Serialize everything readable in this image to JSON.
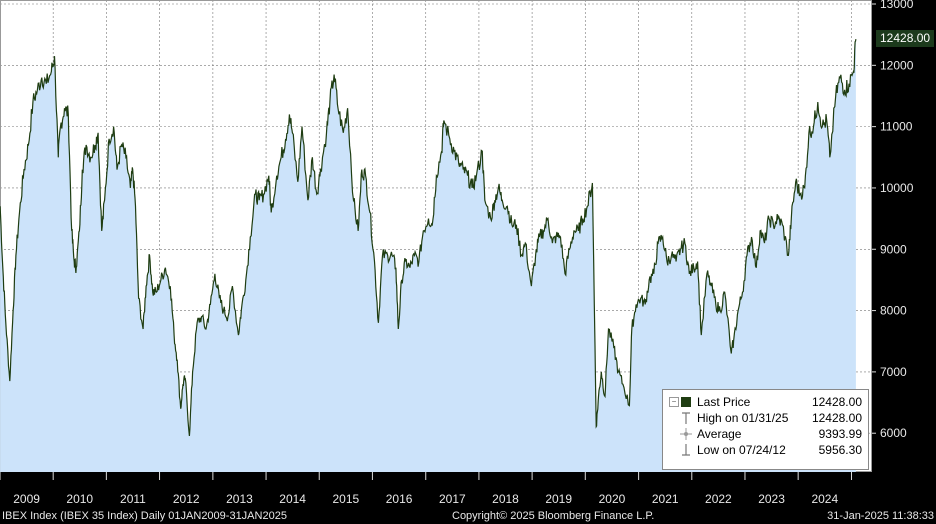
{
  "chart_data": {
    "type": "area",
    "title": "",
    "xlabel": "",
    "ylabel": "",
    "ylim": [
      5400,
      13000
    ],
    "y_ticks": [
      6000,
      7000,
      8000,
      9000,
      10000,
      11000,
      12000,
      13000
    ],
    "x_ticks": [
      "2009",
      "2010",
      "2011",
      "2012",
      "2013",
      "2014",
      "2015",
      "2016",
      "2017",
      "2018",
      "2019",
      "2020",
      "2021",
      "2022",
      "2023",
      "2024"
    ],
    "grid": true,
    "legend_position": "bottom-right",
    "series": [
      {
        "name": "Last Price",
        "color": "#1f3d12",
        "fill": "#cce3fa",
        "points": [
          [
            "2009-01-02",
            9700
          ],
          [
            "2009-01-20",
            8700
          ],
          [
            "2009-02-10",
            7800
          ],
          [
            "2009-03-09",
            6850
          ],
          [
            "2009-04-01",
            8000
          ],
          [
            "2009-04-20",
            8900
          ],
          [
            "2009-05-15",
            9600
          ],
          [
            "2009-06-15",
            10300
          ],
          [
            "2009-07-15",
            10700
          ],
          [
            "2009-08-15",
            11400
          ],
          [
            "2009-09-15",
            11600
          ],
          [
            "2009-10-15",
            11800
          ],
          [
            "2009-11-15",
            11700
          ],
          [
            "2009-12-20",
            11900
          ],
          [
            "2010-01-10",
            12150
          ],
          [
            "2010-02-05",
            10500
          ],
          [
            "2010-02-20",
            11000
          ],
          [
            "2010-03-20",
            11300
          ],
          [
            "2010-04-15",
            11200
          ],
          [
            "2010-05-08",
            9300
          ],
          [
            "2010-05-25",
            8800
          ],
          [
            "2010-06-08",
            8700
          ],
          [
            "2010-06-30",
            9300
          ],
          [
            "2010-07-20",
            10300
          ],
          [
            "2010-08-15",
            10700
          ],
          [
            "2010-09-15",
            10500
          ],
          [
            "2010-10-15",
            10700
          ],
          [
            "2010-11-05",
            10900
          ],
          [
            "2010-11-30",
            9300
          ],
          [
            "2010-12-20",
            9800
          ],
          [
            "2011-01-20",
            10800
          ],
          [
            "2011-02-20",
            11000
          ],
          [
            "2011-03-15",
            10300
          ],
          [
            "2011-04-15",
            10700
          ],
          [
            "2011-05-15",
            10500
          ],
          [
            "2011-06-15",
            10000
          ],
          [
            "2011-07-01",
            10300
          ],
          [
            "2011-07-20",
            9700
          ],
          [
            "2011-08-10",
            8200
          ],
          [
            "2011-09-10",
            7700
          ],
          [
            "2011-10-01",
            8400
          ],
          [
            "2011-10-25",
            8900
          ],
          [
            "2011-11-15",
            8300
          ],
          [
            "2011-12-10",
            8300
          ],
          [
            "2012-01-10",
            8500
          ],
          [
            "2012-02-10",
            8700
          ],
          [
            "2012-03-15",
            8400
          ],
          [
            "2012-04-10",
            7600
          ],
          [
            "2012-05-01",
            7200
          ],
          [
            "2012-05-25",
            6400
          ],
          [
            "2012-06-10",
            6800
          ],
          [
            "2012-06-25",
            6900
          ],
          [
            "2012-07-24",
            5956
          ],
          [
            "2012-08-15",
            7000
          ],
          [
            "2012-09-15",
            7800
          ],
          [
            "2012-10-15",
            7900
          ],
          [
            "2012-11-15",
            7700
          ],
          [
            "2012-12-15",
            8100
          ],
          [
            "2013-01-15",
            8600
          ],
          [
            "2013-02-15",
            8200
          ],
          [
            "2013-03-15",
            8000
          ],
          [
            "2013-04-15",
            7900
          ],
          [
            "2013-05-15",
            8400
          ],
          [
            "2013-06-25",
            7600
          ],
          [
            "2013-07-15",
            8000
          ],
          [
            "2013-08-15",
            8500
          ],
          [
            "2013-09-15",
            9200
          ],
          [
            "2013-10-20",
            9900
          ],
          [
            "2013-11-15",
            9800
          ],
          [
            "2013-12-15",
            9900
          ],
          [
            "2014-01-20",
            10200
          ],
          [
            "2014-02-05",
            9600
          ],
          [
            "2014-03-15",
            10200
          ],
          [
            "2014-04-15",
            10500
          ],
          [
            "2014-05-15",
            10800
          ],
          [
            "2014-06-10",
            11200
          ],
          [
            "2014-07-01",
            10900
          ],
          [
            "2014-08-07",
            10100
          ],
          [
            "2014-09-05",
            11000
          ],
          [
            "2014-10-15",
            9800
          ],
          [
            "2014-11-15",
            10500
          ],
          [
            "2014-12-15",
            9900
          ],
          [
            "2015-01-10",
            10300
          ],
          [
            "2015-02-20",
            10900
          ],
          [
            "2015-03-15",
            11400
          ],
          [
            "2015-04-13",
            11850
          ],
          [
            "2015-05-10",
            11300
          ],
          [
            "2015-06-15",
            10900
          ],
          [
            "2015-07-15",
            11300
          ],
          [
            "2015-08-24",
            9800
          ],
          [
            "2015-09-25",
            9300
          ],
          [
            "2015-10-20",
            10300
          ],
          [
            "2015-11-15",
            10200
          ],
          [
            "2015-12-15",
            9600
          ],
          [
            "2016-01-15",
            8800
          ],
          [
            "2016-02-11",
            7800
          ],
          [
            "2016-03-10",
            8900
          ],
          [
            "2016-04-15",
            8900
          ],
          [
            "2016-05-15",
            8900
          ],
          [
            "2016-06-10",
            8700
          ],
          [
            "2016-06-27",
            7700
          ],
          [
            "2016-07-20",
            8500
          ],
          [
            "2016-08-15",
            8800
          ],
          [
            "2016-09-15",
            8700
          ],
          [
            "2016-10-15",
            8900
          ],
          [
            "2016-11-15",
            8800
          ],
          [
            "2016-12-15",
            9300
          ],
          [
            "2017-01-20",
            9500
          ],
          [
            "2017-02-15",
            9400
          ],
          [
            "2017-03-15",
            10200
          ],
          [
            "2017-04-20",
            10600
          ],
          [
            "2017-05-05",
            11100
          ],
          [
            "2017-06-15",
            10800
          ],
          [
            "2017-07-15",
            10600
          ],
          [
            "2017-08-15",
            10400
          ],
          [
            "2017-09-15",
            10300
          ],
          [
            "2017-10-15",
            10200
          ],
          [
            "2017-11-15",
            10000
          ],
          [
            "2017-12-15",
            10200
          ],
          [
            "2018-01-24",
            10600
          ],
          [
            "2018-02-10",
            9800
          ],
          [
            "2018-03-23",
            9500
          ],
          [
            "2018-04-20",
            9800
          ],
          [
            "2018-05-15",
            10000
          ],
          [
            "2018-06-10",
            9800
          ],
          [
            "2018-07-15",
            9700
          ],
          [
            "2018-08-15",
            9400
          ],
          [
            "2018-09-15",
            9400
          ],
          [
            "2018-10-20",
            8900
          ],
          [
            "2018-11-15",
            9100
          ],
          [
            "2018-12-27",
            8400
          ],
          [
            "2019-01-25",
            8900
          ],
          [
            "2019-02-20",
            9200
          ],
          [
            "2019-03-20",
            9300
          ],
          [
            "2019-04-20",
            9500
          ],
          [
            "2019-05-20",
            9100
          ],
          [
            "2019-06-15",
            9200
          ],
          [
            "2019-07-15",
            9200
          ],
          [
            "2019-08-15",
            8600
          ],
          [
            "2019-09-15",
            9000
          ],
          [
            "2019-10-15",
            9300
          ],
          [
            "2019-11-15",
            9300
          ],
          [
            "2019-12-15",
            9500
          ],
          [
            "2020-01-15",
            9700
          ],
          [
            "2020-02-19",
            10080
          ],
          [
            "2020-03-16",
            6107
          ],
          [
            "2020-04-01",
            6600
          ],
          [
            "2020-04-20",
            7000
          ],
          [
            "2020-05-15",
            6600
          ],
          [
            "2020-06-08",
            7700
          ],
          [
            "2020-07-15",
            7400
          ],
          [
            "2020-08-15",
            7000
          ],
          [
            "2020-09-15",
            6800
          ],
          [
            "2020-10-30",
            6450
          ],
          [
            "2020-11-15",
            7700
          ],
          [
            "2020-12-15",
            8100
          ],
          [
            "2021-01-15",
            8200
          ],
          [
            "2021-02-15",
            8100
          ],
          [
            "2021-03-15",
            8500
          ],
          [
            "2021-04-15",
            8600
          ],
          [
            "2021-05-15",
            9100
          ],
          [
            "2021-06-15",
            9200
          ],
          [
            "2021-07-15",
            8800
          ],
          [
            "2021-08-15",
            8900
          ],
          [
            "2021-09-15",
            8800
          ],
          [
            "2021-10-15",
            9000
          ],
          [
            "2021-11-15",
            9100
          ],
          [
            "2021-12-15",
            8600
          ],
          [
            "2022-01-15",
            8700
          ],
          [
            "2022-02-10",
            8800
          ],
          [
            "2022-03-07",
            7600
          ],
          [
            "2022-04-15",
            8600
          ],
          [
            "2022-05-15",
            8400
          ],
          [
            "2022-06-15",
            8100
          ],
          [
            "2022-07-15",
            8000
          ],
          [
            "2022-08-15",
            8300
          ],
          [
            "2022-09-29",
            7300
          ],
          [
            "2022-10-15",
            7500
          ],
          [
            "2022-11-15",
            8000
          ],
          [
            "2022-12-15",
            8300
          ],
          [
            "2023-01-15",
            8900
          ],
          [
            "2023-02-15",
            9200
          ],
          [
            "2023-03-20",
            8700
          ],
          [
            "2023-04-15",
            9300
          ],
          [
            "2023-05-15",
            9100
          ],
          [
            "2023-06-15",
            9500
          ],
          [
            "2023-07-15",
            9400
          ],
          [
            "2023-08-15",
            9500
          ],
          [
            "2023-09-15",
            9400
          ],
          [
            "2023-10-26",
            8900
          ],
          [
            "2023-11-15",
            9500
          ],
          [
            "2023-12-15",
            10100
          ],
          [
            "2024-01-15",
            9900
          ],
          [
            "2024-02-15",
            10000
          ],
          [
            "2024-03-15",
            10900
          ],
          [
            "2024-04-15",
            11000
          ],
          [
            "2024-05-15",
            11400
          ],
          [
            "2024-06-15",
            11000
          ],
          [
            "2024-07-15",
            11100
          ],
          [
            "2024-08-05",
            10500
          ],
          [
            "2024-09-15",
            11500
          ],
          [
            "2024-10-15",
            11800
          ],
          [
            "2024-11-15",
            11600
          ],
          [
            "2024-12-15",
            11700
          ],
          [
            "2025-01-15",
            11900
          ],
          [
            "2025-01-31",
            12428
          ]
        ]
      }
    ],
    "last_value_label": "12428.00"
  },
  "legend": {
    "rows": [
      {
        "label": "Last Price",
        "value": "12428.00"
      },
      {
        "label": "High on 01/31/25",
        "value": "12428.00"
      },
      {
        "label": "Average",
        "value": "9393.99"
      },
      {
        "label": "Low on 07/24/12",
        "value": "5956.30"
      }
    ]
  },
  "footer": {
    "left": "IBEX Index (IBEX 35 Index)  Daily 01JAN2009-31JAN2025",
    "center": "Copyright© 2025 Bloomberg Finance L.P.",
    "right": "31-Jan-2025 11:38:33"
  },
  "colors": {
    "background": "#ffffff",
    "frame": "#000000",
    "line": "#1f3d12",
    "area": "#cce3fa",
    "grid": "#777777"
  }
}
